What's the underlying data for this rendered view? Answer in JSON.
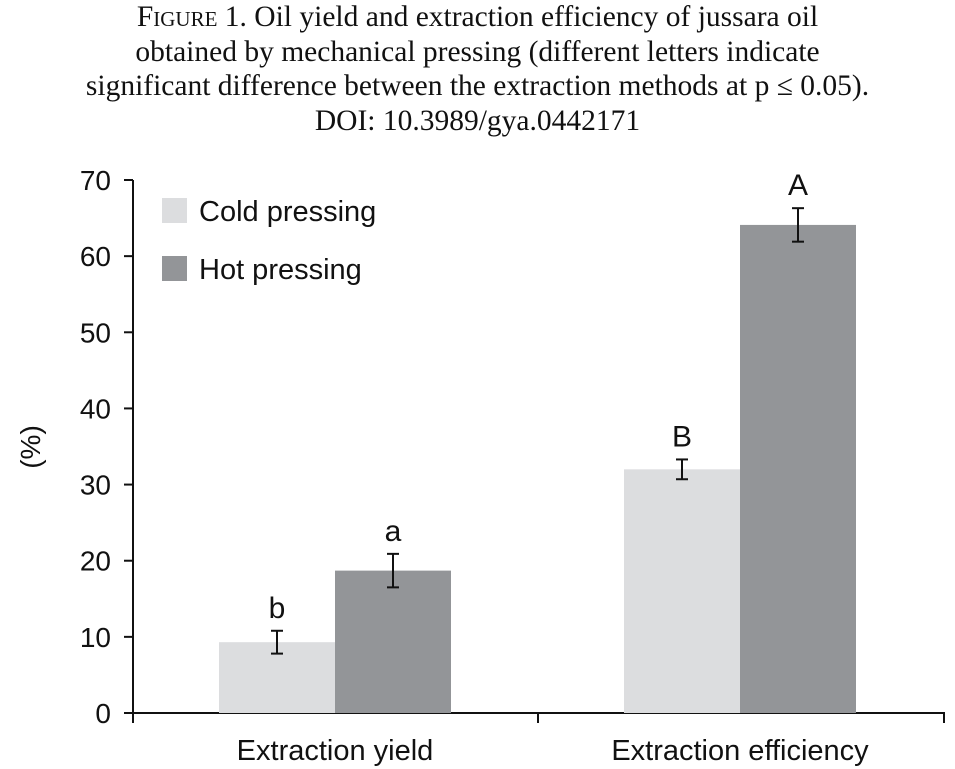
{
  "caption": {
    "label": "Figure",
    "number": "1.",
    "line1_rest": "Oil yield and extraction efficiency of jussara oil",
    "line2": "obtained by mechanical pressing (different letters indicate",
    "line3": "significant difference between the extraction methods at p ≤ 0.05).",
    "line4": "DOI: 10.3989/gya.0442171"
  },
  "chart_data": {
    "type": "bar",
    "categories": [
      "Extraction yield",
      "Extraction efficiency"
    ],
    "series": [
      {
        "name": "Cold pressing",
        "color": "#dcdddf",
        "values": [
          9.3,
          32.0
        ],
        "errors": [
          1.5,
          1.3
        ],
        "letters": [
          "b",
          "B"
        ]
      },
      {
        "name": "Hot pressing",
        "color": "#939598",
        "values": [
          18.7,
          64.1
        ],
        "errors": [
          2.2,
          2.2
        ],
        "letters": [
          "a",
          "A"
        ]
      }
    ],
    "ylabel": "(%)",
    "xlabel": "",
    "ylim": [
      0,
      70
    ],
    "yticks": [
      0,
      10,
      20,
      30,
      40,
      50,
      60,
      70
    ],
    "legend_position": "top-left",
    "grid": false
  }
}
